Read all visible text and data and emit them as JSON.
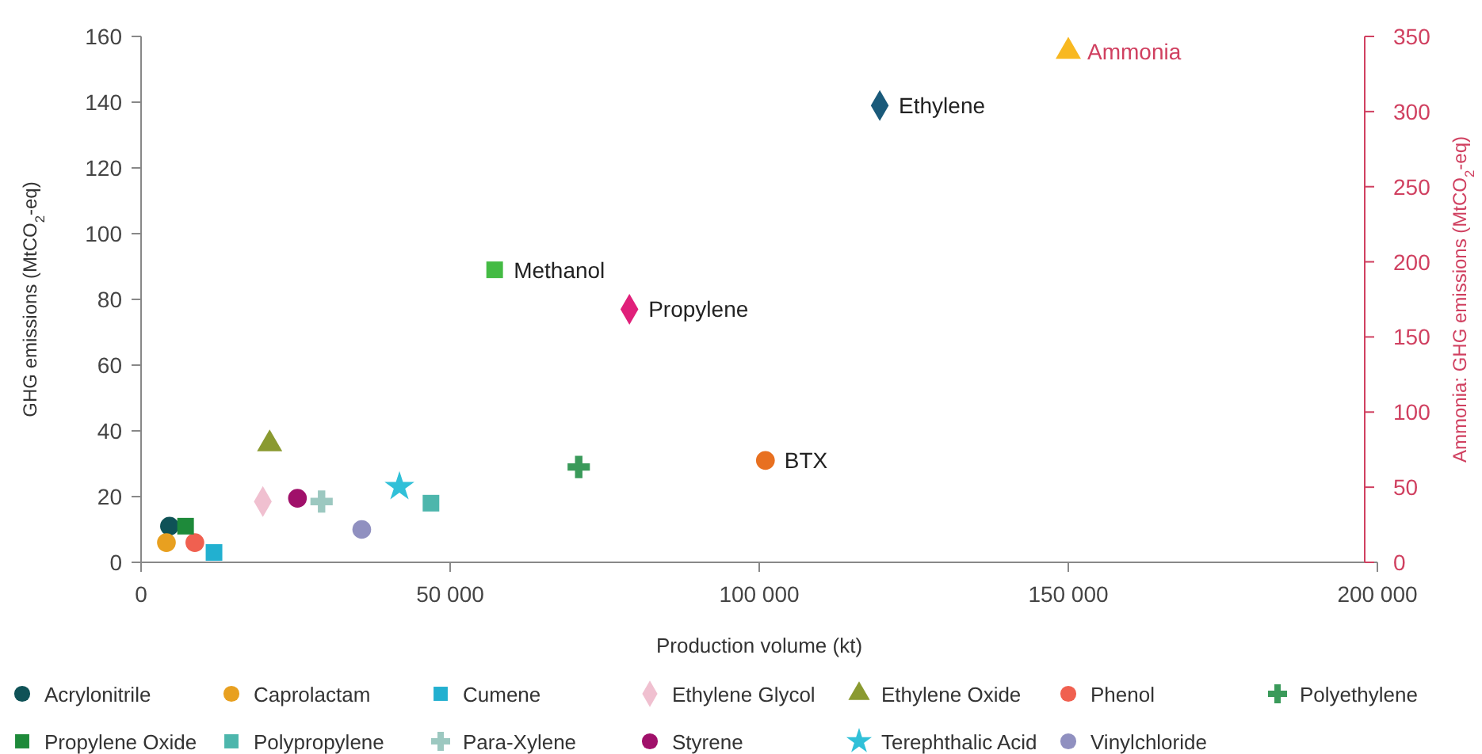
{
  "chart_data": {
    "type": "scatter",
    "xlabel": "Production volume (kt)",
    "ylabel": "GHG emissions (MtCO$_{2}$-eq)",
    "y2label": "Ammonia: GHG emissions (MtCO$_{2}$-eq)",
    "xlim": [
      0,
      200000
    ],
    "xticks": [
      0,
      {
        "value": 50000,
        "label": "50 000"
      },
      {
        "value": 100000,
        "label": "100 000"
      },
      {
        "value": 150000,
        "label": "150 000"
      },
      {
        "value": 200000,
        "label": "200 000"
      }
    ],
    "ylim": [
      0,
      160
    ],
    "yticks": [
      0,
      20,
      40,
      60,
      80,
      100,
      120,
      140,
      160
    ],
    "y2lim": [
      0,
      350
    ],
    "y2ticks": [
      0,
      50,
      100,
      150,
      200,
      250,
      300,
      350
    ],
    "grid": false,
    "legend": "bottom",
    "series": [
      {
        "name": "Acrylonitrile",
        "color": "#0f5257",
        "marker": "circle",
        "x": [
          4600
        ],
        "values": [
          11
        ]
      },
      {
        "name": "Caprolactam",
        "color": "#e8a020",
        "marker": "circle",
        "x": [
          4100
        ],
        "values": [
          6
        ]
      },
      {
        "name": "Cumene",
        "color": "#22b0d0",
        "marker": "square",
        "x": [
          11800
        ],
        "values": [
          3
        ]
      },
      {
        "name": "Ethylene Glycol",
        "color": "#f0c0d0",
        "marker": "diamond",
        "x": [
          19700
        ],
        "values": [
          18.5
        ]
      },
      {
        "name": "Ethylene Oxide",
        "color": "#8a9a30",
        "marker": "triangle",
        "x": [
          20800
        ],
        "values": [
          36
        ]
      },
      {
        "name": "Phenol",
        "color": "#f06050",
        "marker": "circle",
        "x": [
          8700
        ],
        "values": [
          6
        ]
      },
      {
        "name": "Polyethylene",
        "color": "#3a9a5a",
        "marker": "cross",
        "x": [
          70800
        ],
        "values": [
          29
        ]
      },
      {
        "name": "Propylene Oxide",
        "color": "#1e8a3a",
        "marker": "square",
        "x": [
          7200
        ],
        "values": [
          11
        ]
      },
      {
        "name": "Polypropylene",
        "color": "#4db6ac",
        "marker": "square",
        "x": [
          46900
        ],
        "values": [
          18
        ]
      },
      {
        "name": "Para-Xylene",
        "color": "#9cc8c0",
        "marker": "cross",
        "x": [
          29200
        ],
        "values": [
          18.5
        ]
      },
      {
        "name": "Styrene",
        "color": "#a0106a",
        "marker": "circle",
        "x": [
          25300
        ],
        "values": [
          19.5
        ]
      },
      {
        "name": "Terephthalic Acid",
        "color": "#30c0d8",
        "marker": "star",
        "x": [
          41800
        ],
        "values": [
          23
        ]
      },
      {
        "name": "Vinylchloride",
        "color": "#9090c0",
        "marker": "circle",
        "x": [
          35700
        ],
        "values": [
          10
        ]
      },
      {
        "color": "#44bb44",
        "marker": "square",
        "x": [
          57200
        ],
        "values": [
          89
        ]
      },
      {
        "color": "#e0207a",
        "marker": "diamond",
        "x": [
          79000
        ],
        "values": [
          77
        ]
      },
      {
        "color": "#e87020",
        "marker": "circle",
        "x": [
          101000
        ],
        "values": [
          31
        ]
      },
      {
        "color": "#1a5a7a",
        "marker": "diamond",
        "x": [
          119500
        ],
        "values": [
          139
        ]
      },
      {
        "color": "#f8b820",
        "marker": "triangle",
        "axis": "y2",
        "x": [
          150000
        ],
        "values": [
          340
        ]
      }
    ],
    "annotations": [
      {
        "text": "Methanol",
        "x": 57200,
        "y": 89
      },
      {
        "text": "Propylene",
        "x": 79000,
        "y": 77
      },
      {
        "text": "BTX",
        "x": 101000,
        "y": 31
      },
      {
        "text": "Ethylene",
        "x": 119500,
        "y": 139
      },
      {
        "text": "Ammonia",
        "x": 150000,
        "y": 155.4
      }
    ]
  }
}
